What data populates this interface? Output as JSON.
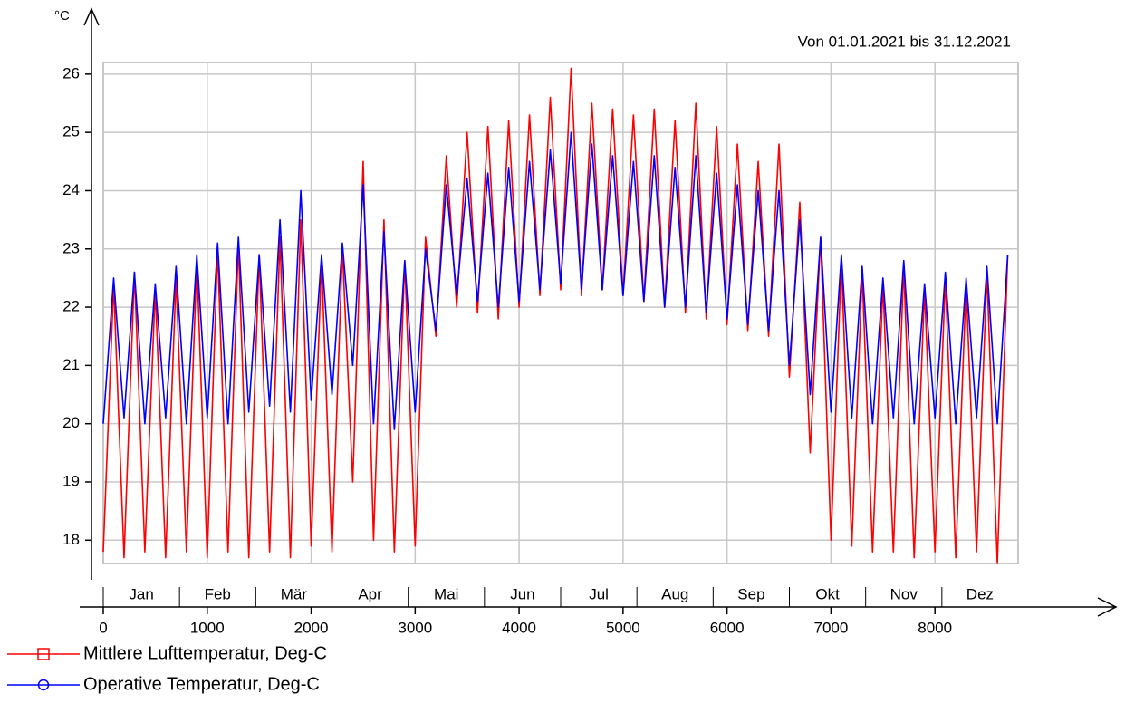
{
  "chart_data": {
    "type": "line",
    "subtitle": "Von 01.01.2021 bis 31.12.2021",
    "y_unit": "°C",
    "months": [
      "Jan",
      "Feb",
      "Mär",
      "Apr",
      "Mai",
      "Jun",
      "Jul",
      "Aug",
      "Sep",
      "Okt",
      "Nov",
      "Dez"
    ],
    "x": [
      0,
      100,
      200,
      300,
      400,
      500,
      600,
      700,
      800,
      900,
      1000,
      1100,
      1200,
      1300,
      1400,
      1500,
      1600,
      1700,
      1800,
      1900,
      2000,
      2100,
      2200,
      2300,
      2400,
      2500,
      2600,
      2700,
      2800,
      2900,
      3000,
      3100,
      3200,
      3300,
      3400,
      3500,
      3600,
      3700,
      3800,
      3900,
      4000,
      4100,
      4200,
      4300,
      4400,
      4500,
      4600,
      4700,
      4800,
      4900,
      5000,
      5100,
      5200,
      5300,
      5400,
      5500,
      5600,
      5700,
      5800,
      5900,
      6000,
      6100,
      6200,
      6300,
      6400,
      6500,
      6600,
      6700,
      6800,
      6900,
      7000,
      7100,
      7200,
      7300,
      7400,
      7500,
      7600,
      7700,
      7800,
      7900,
      8000,
      8100,
      8200,
      8300,
      8400,
      8500,
      8600,
      8700
    ],
    "series": [
      {
        "name": "Mittlere Lufttemperatur, Deg-C",
        "color": "#ff0000",
        "marker": "square",
        "values": [
          17.8,
          22.4,
          17.7,
          22.6,
          17.8,
          22.3,
          17.7,
          22.5,
          17.8,
          22.8,
          17.7,
          23.0,
          17.8,
          23.1,
          17.7,
          22.9,
          17.8,
          23.2,
          17.7,
          23.5,
          17.9,
          22.8,
          17.8,
          23.0,
          19.0,
          24.5,
          18.0,
          23.5,
          17.8,
          22.8,
          17.9,
          23.2,
          21.5,
          24.6,
          22.0,
          25.0,
          21.9,
          25.1,
          21.8,
          25.2,
          22.0,
          25.3,
          22.2,
          25.6,
          22.3,
          26.1,
          22.2,
          25.5,
          22.3,
          25.4,
          22.2,
          25.3,
          22.1,
          25.4,
          22.0,
          25.2,
          21.9,
          25.5,
          21.8,
          25.1,
          21.7,
          24.8,
          21.6,
          24.5,
          21.5,
          24.8,
          20.8,
          23.8,
          19.5,
          23.2,
          18.0,
          22.8,
          17.9,
          22.6,
          17.8,
          22.4,
          17.8,
          22.7,
          17.7,
          22.3,
          17.8,
          22.5,
          17.7,
          22.4,
          17.8,
          22.6,
          17.6,
          22.9
        ]
      },
      {
        "name": "Operative Temperatur, Deg-C",
        "color": "#0000ff",
        "marker": "circle",
        "values": [
          20.0,
          22.5,
          20.1,
          22.6,
          20.0,
          22.4,
          20.1,
          22.7,
          20.0,
          22.9,
          20.1,
          23.1,
          20.0,
          23.2,
          20.2,
          22.9,
          20.3,
          23.5,
          20.2,
          24.0,
          20.4,
          22.9,
          20.5,
          23.1,
          21.0,
          24.1,
          20.0,
          23.3,
          19.9,
          22.8,
          20.2,
          23.0,
          21.6,
          24.1,
          22.2,
          24.2,
          22.1,
          24.3,
          22.0,
          24.4,
          22.1,
          24.5,
          22.3,
          24.7,
          22.4,
          25.0,
          22.3,
          24.8,
          22.3,
          24.6,
          22.2,
          24.5,
          22.1,
          24.6,
          22.0,
          24.4,
          22.0,
          24.6,
          21.9,
          24.3,
          21.8,
          24.1,
          21.7,
          24.0,
          21.6,
          24.0,
          21.0,
          23.5,
          20.5,
          23.2,
          20.2,
          22.9,
          20.1,
          22.7,
          20.0,
          22.5,
          20.1,
          22.8,
          20.0,
          22.4,
          20.1,
          22.6,
          20.0,
          22.5,
          20.1,
          22.7,
          20.0,
          22.9
        ]
      }
    ],
    "xlim": [
      0,
      8800
    ],
    "xticks": [
      0,
      1000,
      2000,
      3000,
      4000,
      5000,
      6000,
      7000,
      8000
    ],
    "ylim": [
      17.6,
      26.2
    ],
    "yticks": [
      18,
      19,
      20,
      21,
      22,
      23,
      24,
      25,
      26
    ],
    "grid": true
  }
}
